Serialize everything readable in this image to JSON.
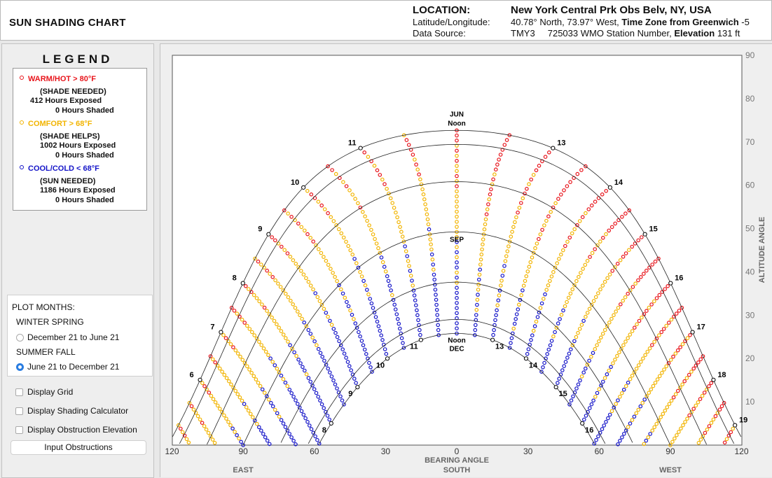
{
  "header": {
    "app_title": "SUN SHADING CHART",
    "location_label": "LOCATION:",
    "location_value": "New York Central Prk Obs Belv, NY, USA",
    "latlon_label": "Latitude/Longitude:",
    "latlon_value": "40.78° North, 73.97° West,",
    "tz_label": "Time Zone from Greenwich",
    "tz_value": "-5",
    "source_label": "Data Source:",
    "source_value": "TMY3",
    "wmo_value": "725033 WMO Station Number,",
    "elev_label": "Elevation",
    "elev_value": "131 ft"
  },
  "legend": {
    "title": "LEGEND",
    "warm": {
      "label": "WARM/HOT  > 80°F",
      "note": "(SHADE NEEDED)",
      "exposed": "412",
      "shaded": "0",
      "color": "#e8141b"
    },
    "comfort": {
      "label": "COMFORT  > 68°F",
      "note": "(SHADE HELPS)",
      "exposed": "1002",
      "shaded": "0",
      "color": "#f2b400"
    },
    "cool": {
      "label": "COOL/COLD  < 68°F",
      "note": "(SUN NEEDED)",
      "exposed": "1186",
      "shaded": "0",
      "color": "#1414c8"
    },
    "exposed_unit": "Hours Exposed",
    "shaded_unit": "Hours Shaded"
  },
  "plot_months": {
    "title": "PLOT MONTHS:",
    "group1": "WINTER SPRING",
    "option1": "December 21 to June 21",
    "group2": "SUMMER FALL",
    "option2": "June 21 to December 21",
    "selected": "option2"
  },
  "options": {
    "display_grid": "Display Grid",
    "display_shading": "Display Shading Calculator",
    "display_obstruction": "Display Obstruction Elevation",
    "input_obstructions": "Input Obstructions"
  },
  "chart_data": {
    "type": "scatter",
    "xlabel": "BEARING ANGLE",
    "xlabel_sub": "SOUTH",
    "east_label": "EAST",
    "west_label": "WEST",
    "ylabel": "ALTITUDE ANGLE",
    "xlim": [
      -120,
      120
    ],
    "ylim": [
      0,
      90
    ],
    "x_ticks": [
      -120,
      -90,
      -60,
      -30,
      0,
      30,
      60,
      90,
      120
    ],
    "x_tick_labels": [
      "120",
      "90",
      "60",
      "30",
      "0",
      "30",
      "60",
      "90",
      "120"
    ],
    "y_ticks": [
      10,
      20,
      30,
      40,
      50,
      60,
      70,
      80,
      90
    ],
    "latitude": 40.78,
    "declination_curves": [
      23.44,
      20.2,
      11.6,
      0,
      -11.6,
      -20.2,
      -23.44
    ],
    "curve_labels": {
      "jun": "JUN",
      "sep": "SEP",
      "dec": "DEC",
      "noon": "Noon"
    },
    "hour_labels_summer": [
      {
        "hour": 6,
        "text": "6"
      },
      {
        "hour": 7,
        "text": "7"
      },
      {
        "hour": 8,
        "text": "8"
      },
      {
        "hour": 9,
        "text": "9"
      },
      {
        "hour": 10,
        "text": "10"
      },
      {
        "hour": 11,
        "text": "11"
      },
      {
        "hour": 13,
        "text": "13"
      },
      {
        "hour": 14,
        "text": "14"
      },
      {
        "hour": 15,
        "text": "15"
      },
      {
        "hour": 16,
        "text": "16"
      },
      {
        "hour": 17,
        "text": "17"
      },
      {
        "hour": 18,
        "text": "18"
      },
      {
        "hour": 19,
        "text": "19"
      }
    ],
    "hour_labels_winter": [
      {
        "hour": 8,
        "text": "8"
      },
      {
        "hour": 9,
        "text": "9"
      },
      {
        "hour": 10,
        "text": "10"
      },
      {
        "hour": 11,
        "text": "11"
      },
      {
        "hour": 13,
        "text": "13"
      },
      {
        "hour": 14,
        "text": "14"
      },
      {
        "hour": 15,
        "text": "15"
      },
      {
        "hour": 16,
        "text": "16"
      }
    ],
    "temperature_zones": [
      {
        "name": "cool",
        "color": "#1414c8"
      },
      {
        "name": "comfort",
        "color": "#f2b400"
      },
      {
        "name": "warm",
        "color": "#e8141b"
      }
    ]
  }
}
